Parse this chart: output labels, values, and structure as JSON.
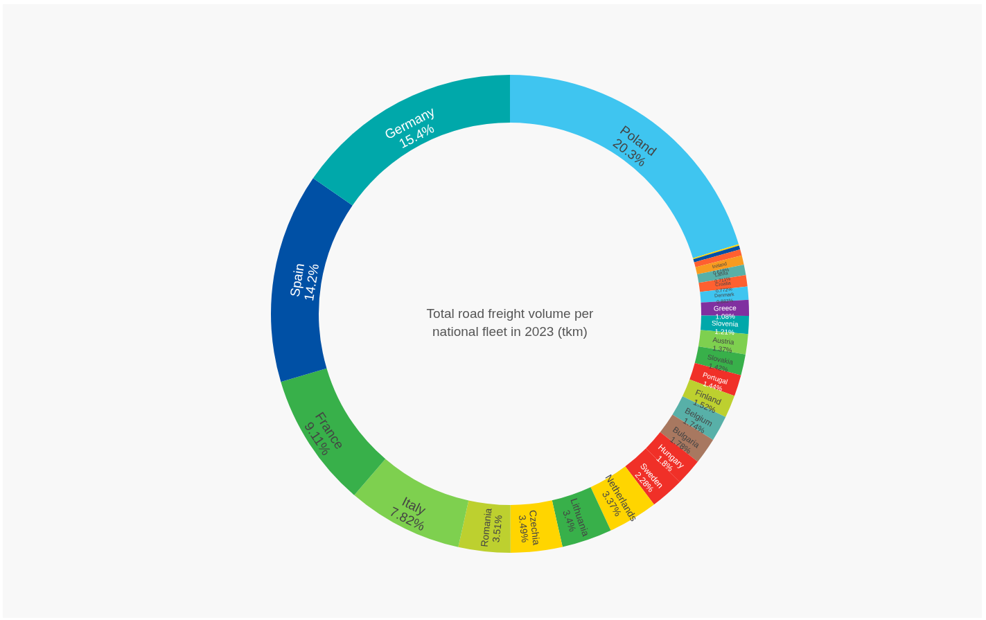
{
  "chart_data": {
    "type": "donut",
    "title": "Total road freight volume per national fleet in 2023 (tkm)",
    "categories": [
      "Poland",
      null,
      null,
      null,
      "Ireland",
      "Latvia",
      "Croatia",
      "Denmark",
      "Greece",
      "Slovenia",
      "Austria",
      "Slovakia",
      "Portugal",
      "Finland",
      "Belgium",
      "Bulgaria",
      "Hungary",
      "Sweden",
      "Netherlands",
      "Lithuania",
      "Czechia",
      "Romania",
      "Italy",
      "France",
      "Spain",
      "Germany"
    ],
    "values": [
      20.3,
      0.088,
      0.27,
      0.42,
      0.618,
      0.711,
      0.772,
      0.883,
      1.08,
      1.21,
      1.37,
      1.42,
      1.44,
      1.52,
      1.74,
      1.78,
      1.8,
      2.28,
      3.37,
      3.4,
      3.49,
      3.51,
      7.82,
      9.11,
      14.2,
      15.4
    ],
    "value_labels": [
      "20.3%",
      null,
      null,
      null,
      "0.618%",
      "0.711%",
      "0.772%",
      "0.883%",
      "1.08%",
      "1.21%",
      "1.37%",
      "1.42%",
      "1.44%",
      "1.52%",
      "1.74%",
      "1.78%",
      "1.8%",
      "2.28%",
      "3.37%",
      "3.4%",
      "3.49%",
      "3.51%",
      "7.82%",
      "9.11%",
      "14.2%",
      "15.4%"
    ],
    "colors": [
      "#3fc5f0",
      "#ffd500",
      "#0050a5",
      "#ff6030",
      "#f89b20",
      "#58b0a8",
      "#ff6030",
      "#3fc5f0",
      "#8030a0",
      "#00a8aa",
      "#7ed04f",
      "#38b04a",
      "#f03028",
      "#bdd02f",
      "#58b0a8",
      "#a87860",
      "#f03028",
      "#f03028",
      "#ffd500",
      "#38b04a",
      "#ffd500",
      "#bdd02f",
      "#7ed04f",
      "#38b04a",
      "#0050a5",
      "#00a8aa"
    ]
  }
}
